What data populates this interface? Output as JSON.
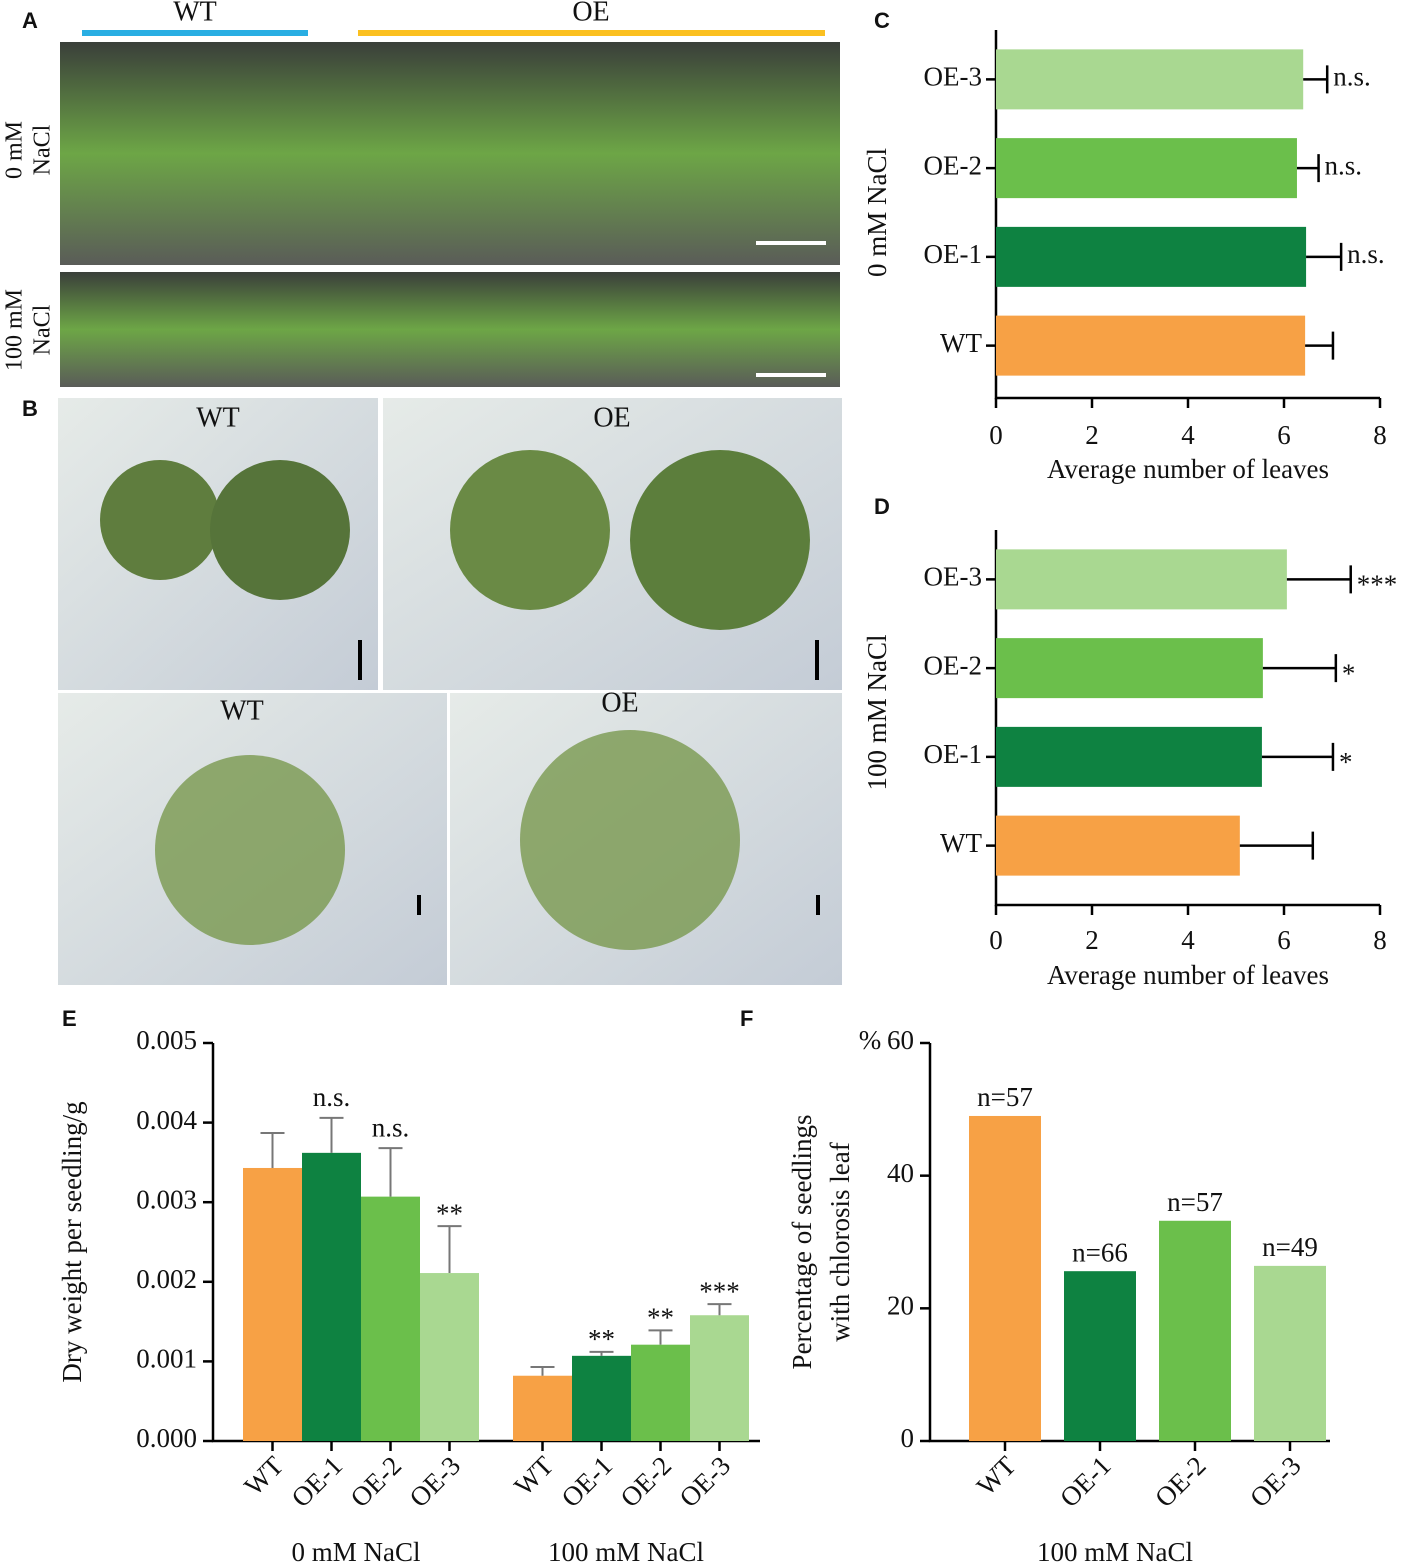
{
  "panel_letters": [
    "A",
    "B",
    "C",
    "D",
    "E",
    "F"
  ],
  "photo_panels": {
    "A": {
      "groups": [
        "WT",
        "OE"
      ],
      "conditions": [
        [
          "0 mM",
          "NaCl"
        ],
        [
          "100 mM",
          "NaCl"
        ]
      ]
    },
    "B": {
      "labels": [
        "WT",
        "OE",
        "WT",
        "OE"
      ]
    }
  },
  "chart_data": [
    {
      "type": "hbar",
      "y_label": "0 mM NaCl",
      "x_label": "Average number of leaves",
      "categories": [
        "WT",
        "OE-1",
        "OE-2",
        "OE-3"
      ],
      "values": [
        6.44,
        6.46,
        6.27,
        6.4
      ],
      "errors": [
        0.58,
        0.73,
        0.45,
        0.5
      ],
      "annotations": [
        null,
        "n.s.",
        "n.s.",
        "n.s."
      ],
      "colors": [
        "#f7a145",
        "#0e8241",
        "#6bbf4b",
        "#a9d891"
      ],
      "xlim": [
        0,
        8
      ],
      "xticks": [
        0,
        2,
        4,
        6,
        8
      ]
    },
    {
      "type": "hbar",
      "y_label": "100 mM NaCl",
      "x_label": "Average number of leaves",
      "categories": [
        "WT",
        "OE-1",
        "OE-2",
        "OE-3"
      ],
      "values": [
        5.08,
        5.54,
        5.56,
        6.06
      ],
      "errors": [
        1.52,
        1.48,
        1.52,
        1.33
      ],
      "annotations": [
        null,
        "*",
        "*",
        "***"
      ],
      "colors": [
        "#f7a145",
        "#0e8241",
        "#6bbf4b",
        "#a9d891"
      ],
      "xlim": [
        0,
        8
      ],
      "xticks": [
        0,
        2,
        4,
        6,
        8
      ]
    },
    {
      "type": "grouped_bar",
      "y_label": "Dry weight per seedling/g",
      "categories": [
        "WT",
        "OE-1",
        "OE-2",
        "OE-3"
      ],
      "colors": [
        "#f7a145",
        "#0e8241",
        "#6bbf4b",
        "#a9d891"
      ],
      "series": [
        {
          "name": "0 mM NaCl",
          "values": [
            0.00343,
            0.00362,
            0.00307,
            0.00211
          ],
          "errors": [
            0.00044,
            0.00044,
            0.00061,
            0.00059
          ],
          "annotations": [
            null,
            "n.s.",
            "n.s.",
            "**"
          ]
        },
        {
          "name": "100 mM NaCl",
          "values": [
            0.00082,
            0.00107,
            0.00121,
            0.00158
          ],
          "errors": [
            0.00011,
            5e-05,
            0.00018,
            0.00014
          ],
          "annotations": [
            null,
            "**",
            "**",
            "***"
          ]
        }
      ],
      "ylim": [
        0,
        0.005
      ],
      "yticks": [
        {
          "value": 0,
          "label": "0.000"
        },
        {
          "value": 0.001,
          "label": "0.001"
        },
        {
          "value": 0.002,
          "label": "0.002"
        },
        {
          "value": 0.003,
          "label": "0.003"
        },
        {
          "value": 0.004,
          "label": "0.004"
        },
        {
          "value": 0.005,
          "label": "0.005"
        }
      ]
    },
    {
      "type": "bar",
      "y_label": [
        "Percentage of seedlings",
        "with chlorosis leaf"
      ],
      "y_unit": "%",
      "x_label": "100 mM NaCl",
      "categories": [
        "WT",
        "OE-1",
        "OE-2",
        "OE-3"
      ],
      "values": [
        49,
        25.6,
        33.2,
        26.4
      ],
      "annotations": [
        "n=57",
        "n=66",
        "n=57",
        "n=49"
      ],
      "colors": [
        "#f7a145",
        "#0e8241",
        "#6bbf4b",
        "#a9d891"
      ],
      "ylim": [
        0,
        60
      ],
      "yticks": [
        0,
        20,
        40,
        60
      ]
    }
  ]
}
